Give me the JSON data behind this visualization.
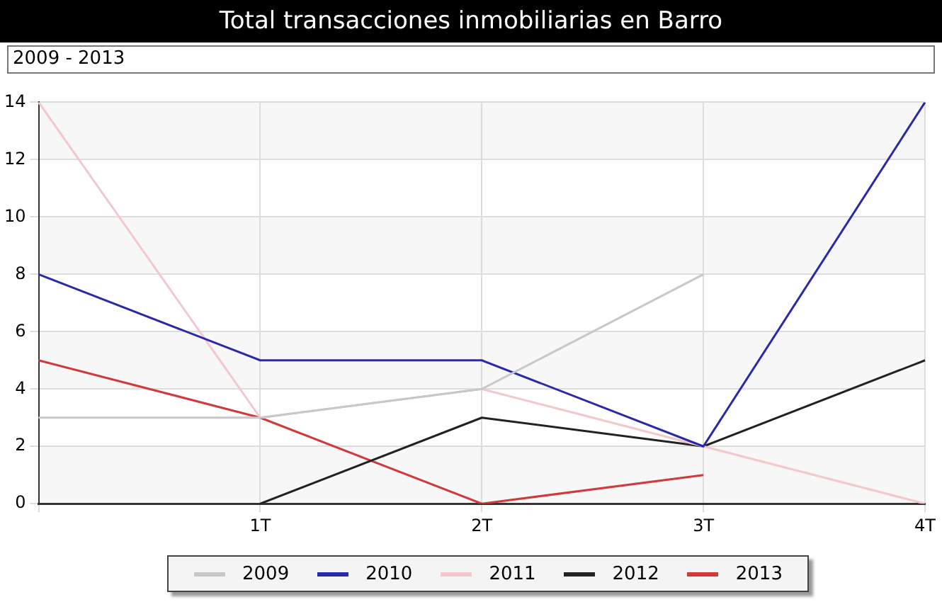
{
  "chart_data": {
    "type": "line",
    "title": "Total transacciones inmobiliarias en Barro",
    "subtitle": "2009 - 2013",
    "categories": [
      null,
      "1T",
      "2T",
      "3T",
      "4T"
    ],
    "series": [
      {
        "name": "2009",
        "color": "#c8c8c8",
        "values": [
          3,
          3,
          4,
          8,
          null
        ]
      },
      {
        "name": "2010",
        "color": "#2a2aa8",
        "values": [
          8,
          5,
          5,
          2,
          14
        ]
      },
      {
        "name": "2011",
        "color": "#f2c8cc",
        "values": [
          14,
          3,
          4,
          2,
          0
        ]
      },
      {
        "name": "2012",
        "color": "#222222",
        "values": [
          null,
          0,
          3,
          2,
          5
        ]
      },
      {
        "name": "2013",
        "color": "#d03a3a",
        "values": [
          5,
          3,
          0,
          1,
          null
        ]
      }
    ],
    "ylim": [
      0,
      14
    ],
    "yticks": [
      0,
      2,
      4,
      6,
      8,
      10,
      12,
      14
    ],
    "grid": true,
    "legend": "bottom",
    "marker": "none",
    "line_style": "solid"
  }
}
